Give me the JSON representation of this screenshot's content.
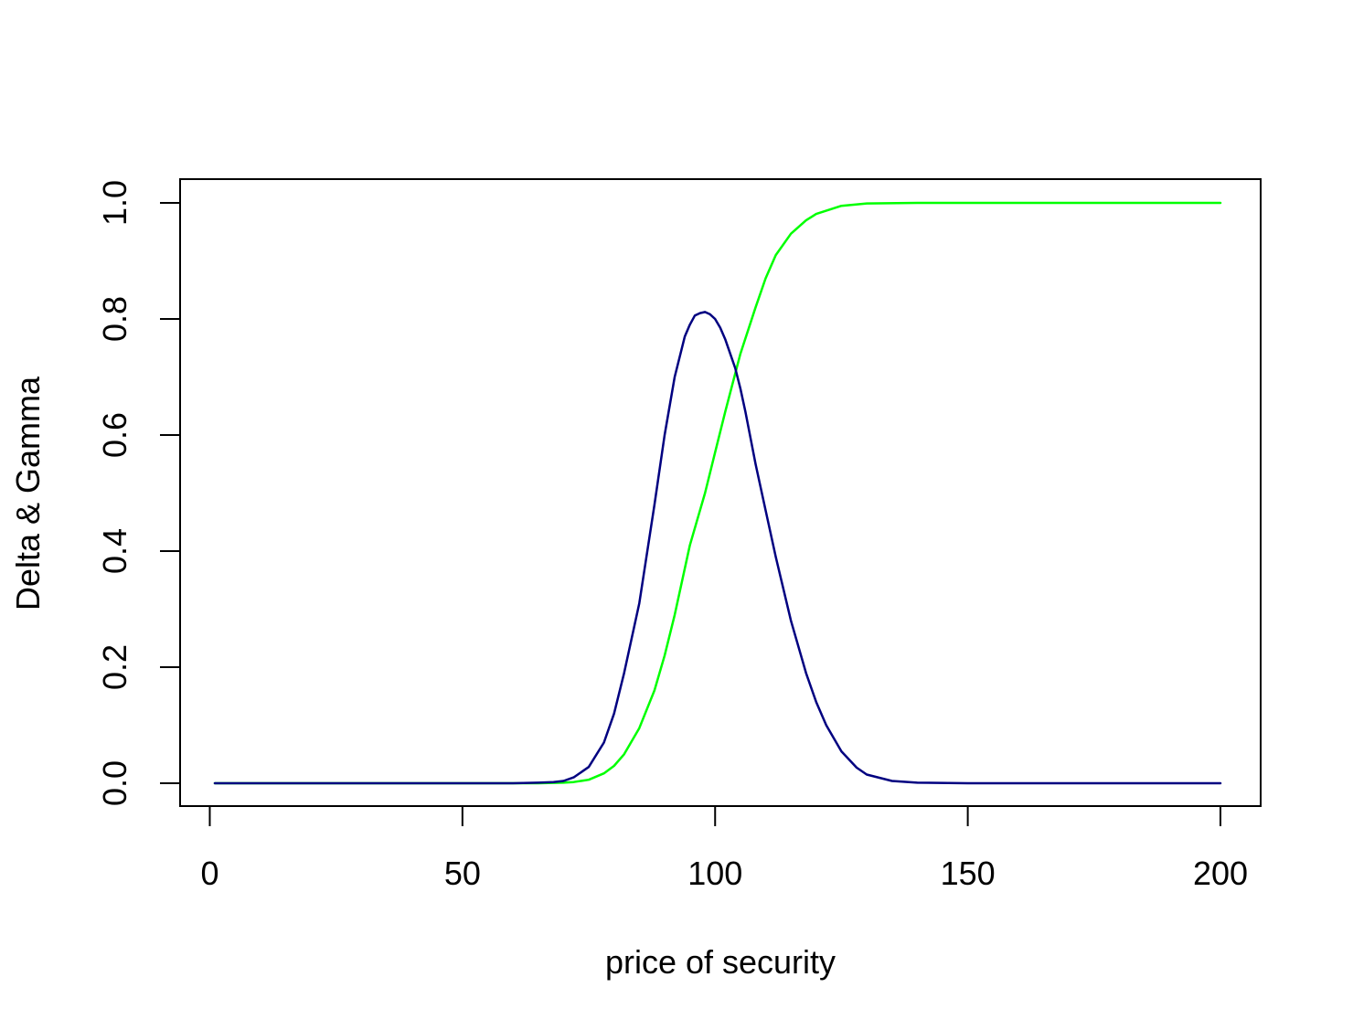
{
  "chart_data": {
    "type": "line",
    "title": "",
    "xlabel": "price of security",
    "ylabel": "Delta & Gamma",
    "xlim": [
      1,
      200
    ],
    "ylim": [
      0,
      1
    ],
    "x_ticks": [
      0,
      50,
      100,
      150,
      200
    ],
    "x_tick_labels": [
      "0",
      "50",
      "100",
      "150",
      "200"
    ],
    "y_ticks": [
      0,
      0.2,
      0.4,
      0.6,
      0.8,
      1
    ],
    "y_tick_labels": [
      "0.0",
      "0.2",
      "0.4",
      "0.6",
      "0.8",
      "1.0"
    ],
    "grid": false,
    "legend": "none",
    "series": [
      {
        "color": "#00ff00",
        "x": [
          1,
          60,
          65,
          70,
          72,
          75,
          78,
          80,
          82,
          85,
          88,
          90,
          92,
          95,
          98,
          100,
          102,
          105,
          108,
          110,
          112,
          115,
          118,
          120,
          125,
          130,
          140,
          150,
          200
        ],
        "y": [
          0,
          0,
          0,
          0.001,
          0.002,
          0.006,
          0.017,
          0.03,
          0.05,
          0.095,
          0.16,
          0.22,
          0.29,
          0.41,
          0.5,
          0.57,
          0.64,
          0.74,
          0.82,
          0.87,
          0.91,
          0.947,
          0.97,
          0.981,
          0.995,
          0.999,
          1,
          1,
          1
        ]
      },
      {
        "color": "#000080",
        "x": [
          1,
          60,
          65,
          68,
          70,
          72,
          75,
          78,
          80,
          82,
          85,
          88,
          90,
          92,
          94,
          95,
          96,
          97,
          98,
          99,
          100,
          101,
          102,
          104,
          105,
          106,
          108,
          110,
          112,
          115,
          118,
          120,
          122,
          125,
          128,
          130,
          135,
          140,
          150,
          200
        ],
        "y": [
          0,
          0,
          0.001,
          0.002,
          0.004,
          0.01,
          0.028,
          0.07,
          0.12,
          0.19,
          0.31,
          0.48,
          0.6,
          0.7,
          0.77,
          0.79,
          0.806,
          0.81,
          0.812,
          0.808,
          0.8,
          0.785,
          0.765,
          0.715,
          0.68,
          0.64,
          0.55,
          0.47,
          0.39,
          0.28,
          0.19,
          0.14,
          0.1,
          0.055,
          0.027,
          0.015,
          0.004,
          0.001,
          0,
          0
        ]
      }
    ]
  }
}
